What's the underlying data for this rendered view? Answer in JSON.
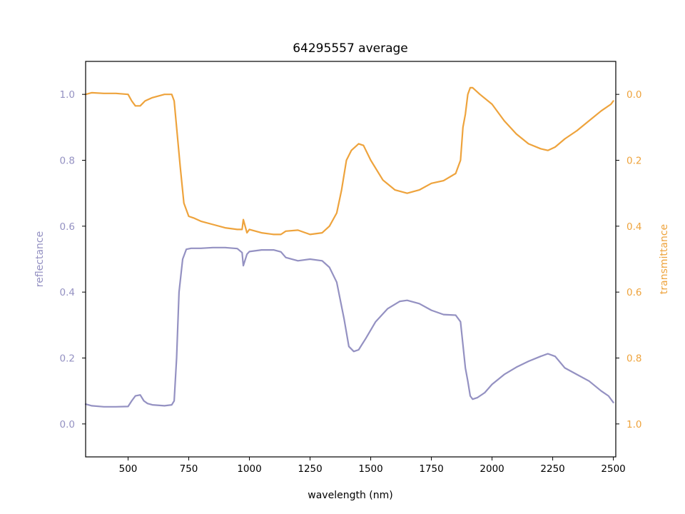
{
  "chart_data": {
    "type": "line",
    "title": "64295557 average",
    "xlabel": "wavelength (nm)",
    "ylabel_left": "reflectance",
    "ylabel_right": "transmittance",
    "xlim": [
      325,
      2510
    ],
    "ylim_left": [
      -0.1,
      1.1
    ],
    "ylim_right": [
      1.1,
      -0.1
    ],
    "right_axis_inverted": true,
    "x_ticks": [
      500,
      750,
      1000,
      1250,
      1500,
      1750,
      2000,
      2250,
      2500
    ],
    "x_tick_labels": [
      "500",
      "750",
      "1000",
      "1250",
      "1500",
      "1750",
      "2000",
      "2250",
      "2500"
    ],
    "y_left_ticks": [
      0.0,
      0.2,
      0.4,
      0.6,
      0.8,
      1.0
    ],
    "y_left_tick_labels": [
      "0.0",
      "0.2",
      "0.4",
      "0.6",
      "0.8",
      "1.0"
    ],
    "y_right_ticks": [
      0.0,
      0.2,
      0.4,
      0.6,
      0.8,
      1.0
    ],
    "y_right_tick_labels": [
      "0.0",
      "0.2",
      "0.4",
      "0.6",
      "0.8",
      "1.0"
    ],
    "grid": false,
    "colors": {
      "reflectance": "#9491c2",
      "transmittance": "#eea33c"
    },
    "series": [
      {
        "axis": "left",
        "x": [
          325,
          350,
          400,
          450,
          500,
          515,
          530,
          550,
          565,
          580,
          600,
          650,
          680,
          690,
          700,
          710,
          725,
          740,
          760,
          800,
          850,
          900,
          950,
          970,
          975,
          990,
          1000,
          1050,
          1100,
          1130,
          1150,
          1200,
          1250,
          1300,
          1330,
          1360,
          1390,
          1410,
          1430,
          1450,
          1480,
          1520,
          1570,
          1620,
          1650,
          1700,
          1750,
          1800,
          1850,
          1870,
          1880,
          1890,
          1900,
          1910,
          1920,
          1940,
          1970,
          2000,
          2050,
          2100,
          2150,
          2200,
          2230,
          2260,
          2300,
          2350,
          2400,
          2450,
          2480,
          2500
        ],
        "values": [
          0.06,
          0.055,
          0.052,
          0.052,
          0.053,
          0.07,
          0.085,
          0.088,
          0.07,
          0.062,
          0.058,
          0.055,
          0.058,
          0.07,
          0.2,
          0.4,
          0.5,
          0.53,
          0.533,
          0.533,
          0.535,
          0.535,
          0.532,
          0.52,
          0.48,
          0.515,
          0.523,
          0.528,
          0.528,
          0.522,
          0.505,
          0.495,
          0.5,
          0.495,
          0.475,
          0.43,
          0.32,
          0.235,
          0.22,
          0.225,
          0.26,
          0.31,
          0.35,
          0.372,
          0.375,
          0.365,
          0.345,
          0.332,
          0.33,
          0.31,
          0.24,
          0.17,
          0.13,
          0.085,
          0.075,
          0.08,
          0.095,
          0.12,
          0.15,
          0.172,
          0.19,
          0.205,
          0.213,
          0.205,
          0.17,
          0.15,
          0.13,
          0.1,
          0.085,
          0.065
        ]
      },
      {
        "axis": "right",
        "x": [
          325,
          350,
          400,
          450,
          500,
          515,
          530,
          550,
          570,
          600,
          650,
          680,
          690,
          700,
          715,
          730,
          750,
          770,
          800,
          850,
          900,
          950,
          970,
          975,
          990,
          1000,
          1050,
          1100,
          1130,
          1150,
          1200,
          1250,
          1300,
          1330,
          1360,
          1380,
          1400,
          1420,
          1450,
          1470,
          1500,
          1550,
          1600,
          1650,
          1700,
          1750,
          1800,
          1850,
          1870,
          1880,
          1890,
          1900,
          1910,
          1920,
          1950,
          2000,
          2050,
          2100,
          2150,
          2200,
          2230,
          2260,
          2300,
          2350,
          2400,
          2450,
          2490,
          2500
        ],
        "values": [
          0.0,
          -0.005,
          -0.003,
          -0.003,
          0.0,
          0.02,
          0.035,
          0.035,
          0.02,
          0.01,
          0.0,
          0.0,
          0.02,
          0.1,
          0.22,
          0.33,
          0.37,
          0.375,
          0.385,
          0.395,
          0.405,
          0.41,
          0.41,
          0.38,
          0.42,
          0.41,
          0.42,
          0.425,
          0.425,
          0.415,
          0.412,
          0.425,
          0.42,
          0.4,
          0.36,
          0.29,
          0.2,
          0.17,
          0.15,
          0.155,
          0.2,
          0.26,
          0.29,
          0.3,
          0.29,
          0.27,
          0.262,
          0.24,
          0.2,
          0.1,
          0.06,
          0.0,
          -0.02,
          -0.02,
          0.0,
          0.03,
          0.08,
          0.12,
          0.15,
          0.165,
          0.17,
          0.16,
          0.135,
          0.11,
          0.08,
          0.05,
          0.03,
          0.02
        ]
      }
    ]
  }
}
